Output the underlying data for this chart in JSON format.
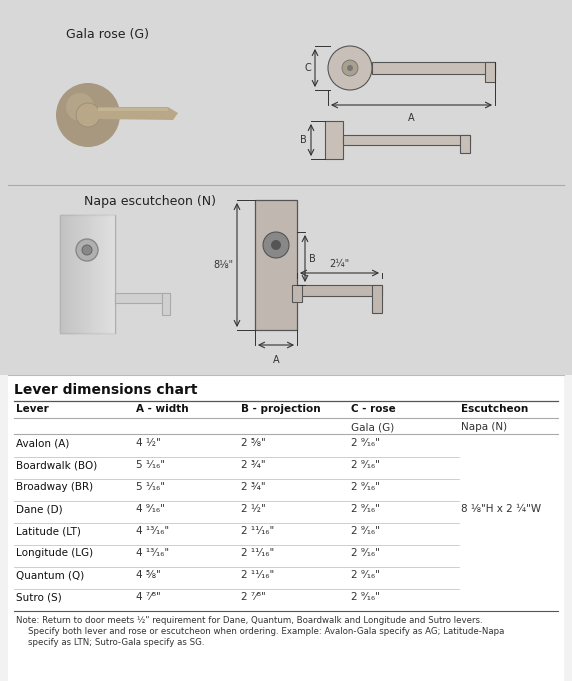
{
  "bg_color": "#d8d8d8",
  "top_section_color": "#d8d8d8",
  "white_section_color": "#f5f5f5",
  "section1_label": "Gala rose (G)",
  "section2_label": "Napa escutcheon (N)",
  "chart_title": "Lever dimensions chart",
  "col_headers": [
    "Lever",
    "A - width",
    "B - projection",
    "C - rose",
    "Escutcheon"
  ],
  "sub_headers": [
    "",
    "",
    "",
    "Gala (G)",
    "Napa (N)"
  ],
  "rows": [
    [
      "Avalon (A)",
      "4 ½\"",
      "2 ⅝\"",
      "2 ⁹⁄₁₆\"",
      ""
    ],
    [
      "Boardwalk (BO)",
      "5 ¹⁄₁₆\"",
      "2 ¾\"",
      "2 ⁹⁄₁₆\"",
      ""
    ],
    [
      "Broadway (BR)",
      "5 ¹⁄₁₆\"",
      "2 ¾\"",
      "2 ⁹⁄₁₆\"",
      ""
    ],
    [
      "Dane (D)",
      "4 ⁹⁄₁₆\"",
      "2 ½\"",
      "2 ⁹⁄₁₆\"",
      ""
    ],
    [
      "Latitude (LT)",
      "4 ¹³⁄₁₆\"",
      "2 ¹¹⁄₁₆\"",
      "2 ⁹⁄₁₆\"",
      ""
    ],
    [
      "Longitude (LG)",
      "4 ¹³⁄₁₆\"",
      "2 ¹¹⁄₁₆\"",
      "2 ⁹⁄₁₆\"",
      ""
    ],
    [
      "Quantum (Q)",
      "4 ⅝\"",
      "2 ¹¹⁄₁₆\"",
      "2 ⁹⁄₁₆\"",
      ""
    ],
    [
      "Sutro (S)",
      "4 ⁷⁄⁸\"",
      "2 ⁷⁄⁸\"",
      "2 ⁹⁄₁₆\"",
      ""
    ]
  ],
  "escutcheon_dim": "8 ⅛\"H x 2 ¼\"W",
  "escutcheon_dim_row": 3,
  "note_line1": "Note: Return to door meets ½\" requirement for Dane, Quantum, Boardwalk and Longitude and Sutro levers.",
  "note_line2": "Specify both lever and rose or escutcheon when ordering. Example: Avalon-Gala specify as AG; Latitude-Napa",
  "note_line3": "specify as LTN; Sutro-Gala specify as SG."
}
